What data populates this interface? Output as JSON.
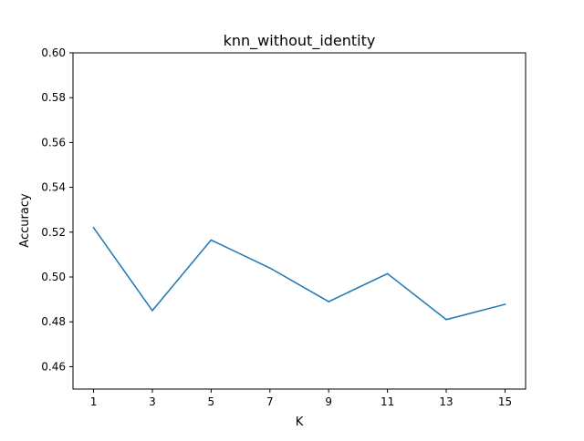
{
  "chart_data": {
    "type": "line",
    "title": "knn_without_identity",
    "xlabel": "K",
    "ylabel": "Accuracy",
    "x": [
      1,
      3,
      5,
      7,
      9,
      11,
      13,
      15
    ],
    "xticks": [
      "1",
      "3",
      "5",
      "7",
      "9",
      "11",
      "13",
      "15"
    ],
    "xlim": [
      0.3,
      15.7
    ],
    "ylim": [
      0.45,
      0.6
    ],
    "yticks": [
      "0.46",
      "0.48",
      "0.50",
      "0.52",
      "0.54",
      "0.56",
      "0.58",
      "0.60"
    ],
    "yticks_values": [
      0.46,
      0.48,
      0.5,
      0.52,
      0.54,
      0.56,
      0.58,
      0.6
    ],
    "grid": false,
    "series": [
      {
        "values": [
          0.522,
          0.485,
          0.5165,
          0.504,
          0.489,
          0.5015,
          0.481,
          0.4878
        ],
        "color": "#1f77b4"
      }
    ]
  }
}
